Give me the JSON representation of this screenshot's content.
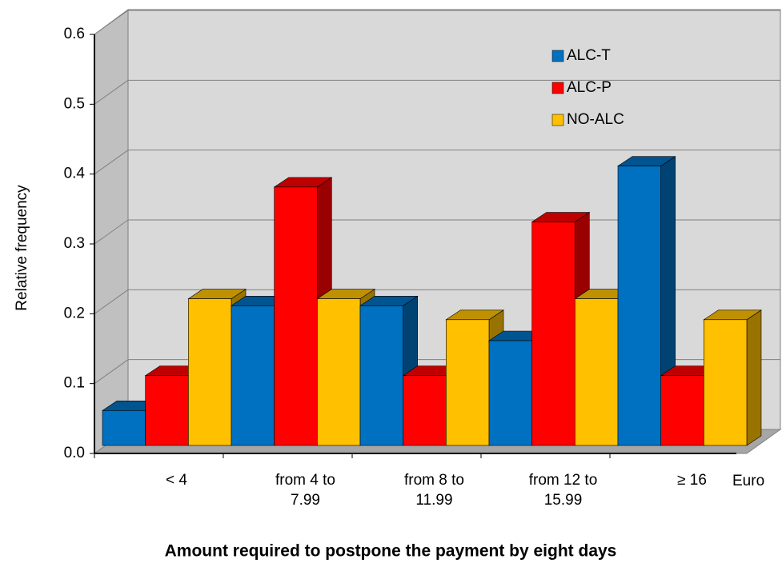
{
  "chart_data": {
    "type": "bar3d",
    "x_label": "Amount required to postpone the payment by eight days",
    "y_label": "Relative frequency",
    "x_unit": "Euro",
    "categories": [
      "< 4",
      "from 4 to 7.99",
      "from 8 to 11.99",
      "from 12 to 15.99",
      "≥ 16"
    ],
    "series": [
      {
        "name": "ALC-T",
        "color": "#0070c0",
        "values": [
          0.05,
          0.2,
          0.2,
          0.15,
          0.4
        ]
      },
      {
        "name": "ALC-P",
        "color": "#ff0000",
        "values": [
          0.1,
          0.37,
          0.1,
          0.32,
          0.1
        ]
      },
      {
        "name": "NO-ALC",
        "color": "#ffc000",
        "values": [
          0.21,
          0.21,
          0.18,
          0.21,
          0.18
        ]
      }
    ],
    "ylim": [
      0,
      0.6
    ],
    "yticks": [
      {
        "value": 0,
        "label": "0.0"
      },
      0.1,
      0.2,
      0.3,
      0.4,
      0.5,
      0.6
    ],
    "grid": true,
    "legend": "upper right"
  }
}
